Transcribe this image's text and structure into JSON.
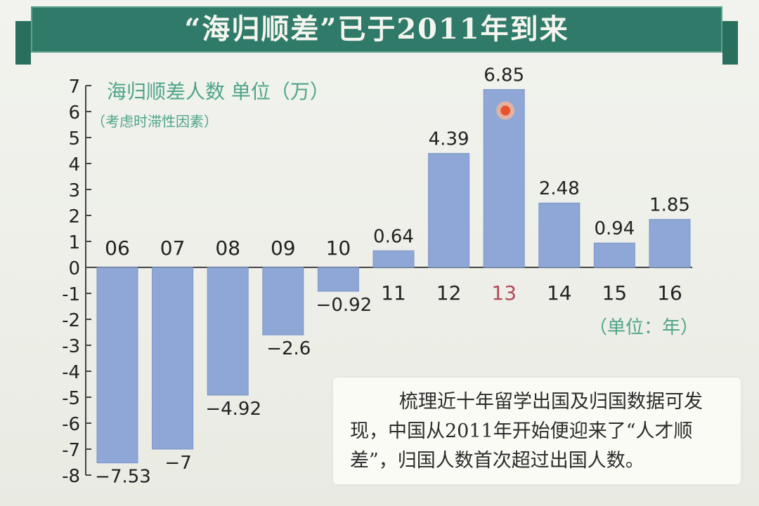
{
  "title": "“海归顺差”已于2011年到来",
  "ylabel": "海归顺差人数 单位（万）",
  "ylabel_note": "（考虑时滞性因素）",
  "x_unit": "（单位：年）",
  "note": "梳理近十年留学出国及归国数据可发现，中国从2011年开始便迎来了“人才顺差”，归国人数首次超过出国人数。",
  "colors": {
    "bar": "#8fa7d6",
    "bar_outline": "#7d96c8",
    "banner": "#2f7a68",
    "highlight": "#e8532a",
    "label_green": "#4fa48a",
    "year_13": "#b24a5a"
  },
  "chart_data": {
    "type": "bar",
    "title": "“海归顺差”已于2011年到来",
    "ylabel": "海归顺差人数 单位（万）",
    "xlabel": "（单位：年）",
    "ylim": [
      -8,
      7
    ],
    "yticks": [
      "7",
      "6",
      "5",
      "4",
      "3",
      "2",
      "1",
      "0",
      "-1",
      "-2",
      "-3",
      "-4",
      "-5",
      "-6",
      "-7",
      "-8"
    ],
    "categories": [
      "06",
      "07",
      "08",
      "09",
      "10",
      "11",
      "12",
      "13",
      "14",
      "15",
      "16"
    ],
    "values": [
      -7.53,
      -7,
      -4.92,
      -2.6,
      -0.92,
      0.64,
      4.39,
      6.85,
      2.48,
      0.94,
      1.85
    ],
    "value_labels": [
      "−7.53",
      "−7",
      "−4.92",
      "−2.6",
      "−0.92",
      "0.64",
      "4.39",
      "6.85",
      "2.48",
      "0.94",
      "1.85"
    ],
    "highlight_category": "13",
    "grid": false,
    "legend": "none"
  }
}
